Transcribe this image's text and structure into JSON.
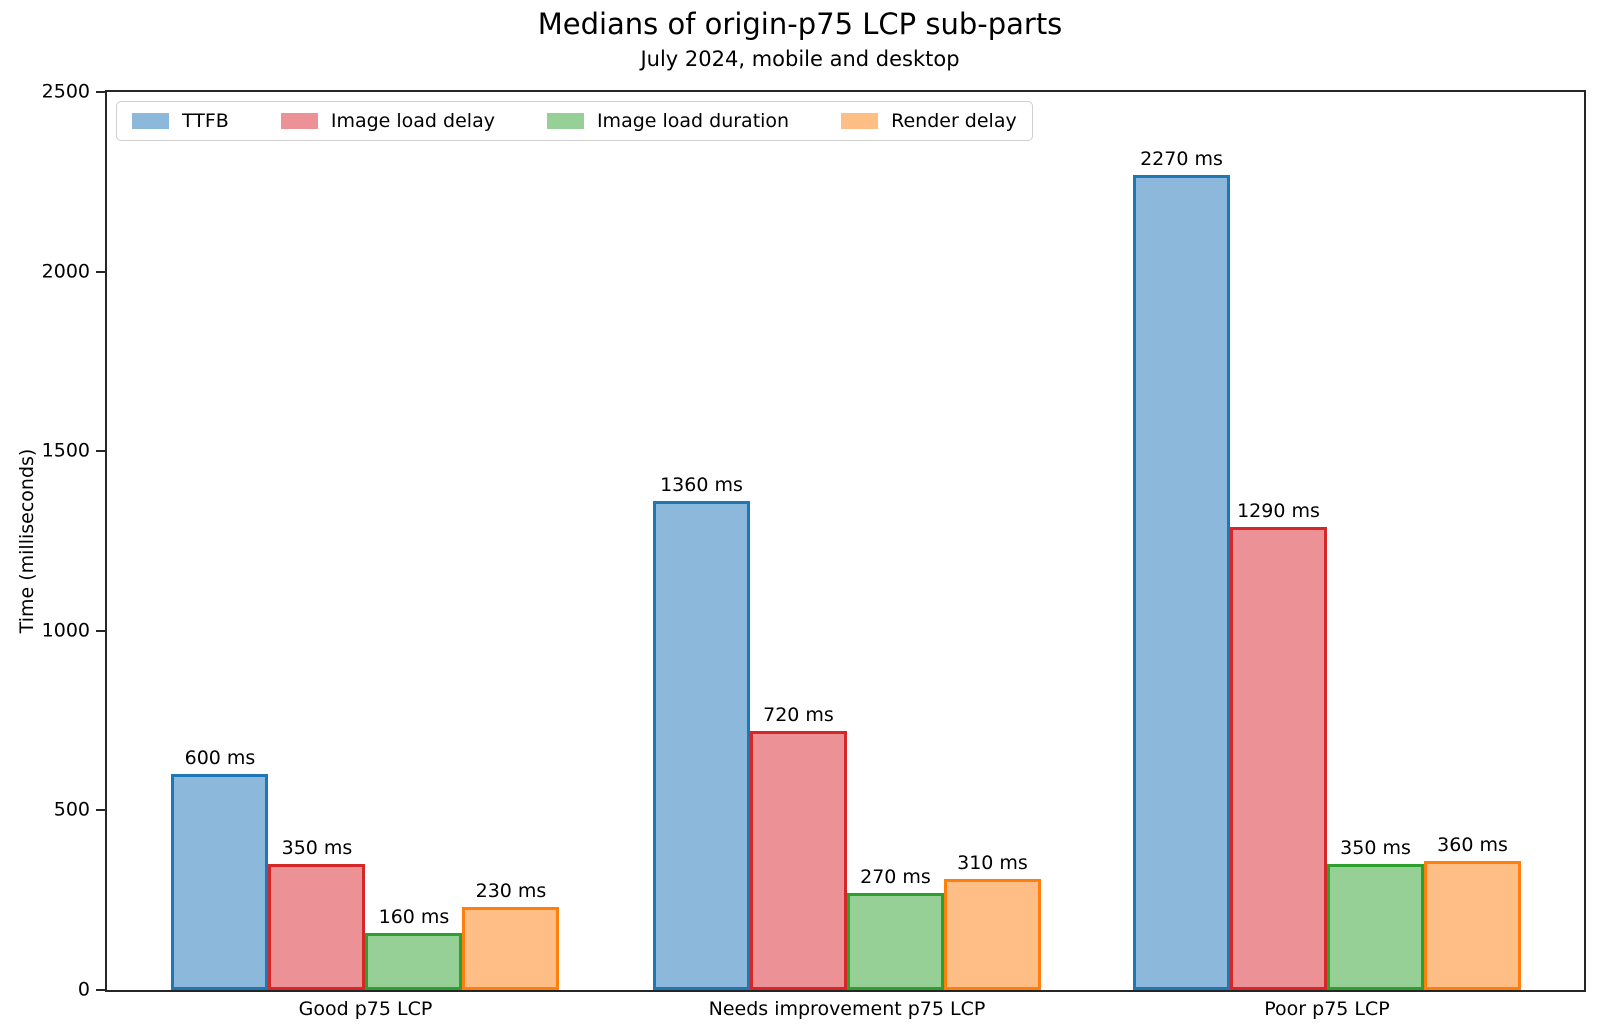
{
  "chart_data": {
    "type": "bar",
    "title": "Medians of origin-p75 LCP sub-parts",
    "subtitle": "July 2024, mobile and desktop",
    "xlabel": "",
    "ylabel": "Time (milliseconds)",
    "ylim": [
      0,
      2500
    ],
    "yticks": [
      0,
      500,
      1000,
      1500,
      2000,
      2500
    ],
    "grid": false,
    "legend_position": "upper left",
    "value_suffix": " ms",
    "categories": [
      "Good p75 LCP",
      "Needs improvement p75 LCP",
      "Poor p75 LCP"
    ],
    "series": [
      {
        "name": "TTFB",
        "values": [
          600,
          1360,
          2270
        ],
        "fill_color": "#8cb8dc",
        "edge_color": "#1f77b4"
      },
      {
        "name": "Image load delay",
        "values": [
          350,
          720,
          1290
        ],
        "fill_color": "#ec9196",
        "edge_color": "#d62728"
      },
      {
        "name": "Image load duration",
        "values": [
          160,
          270,
          350
        ],
        "fill_color": "#97d097",
        "edge_color": "#2ca02c"
      },
      {
        "name": "Render delay",
        "values": [
          230,
          310,
          360
        ],
        "fill_color": "#ffbe85",
        "edge_color": "#ff7f0e"
      }
    ],
    "colors": {
      "spine": "#262626",
      "text": "#000000",
      "legend_border": "#d0d0d0",
      "background": "#ffffff"
    }
  }
}
